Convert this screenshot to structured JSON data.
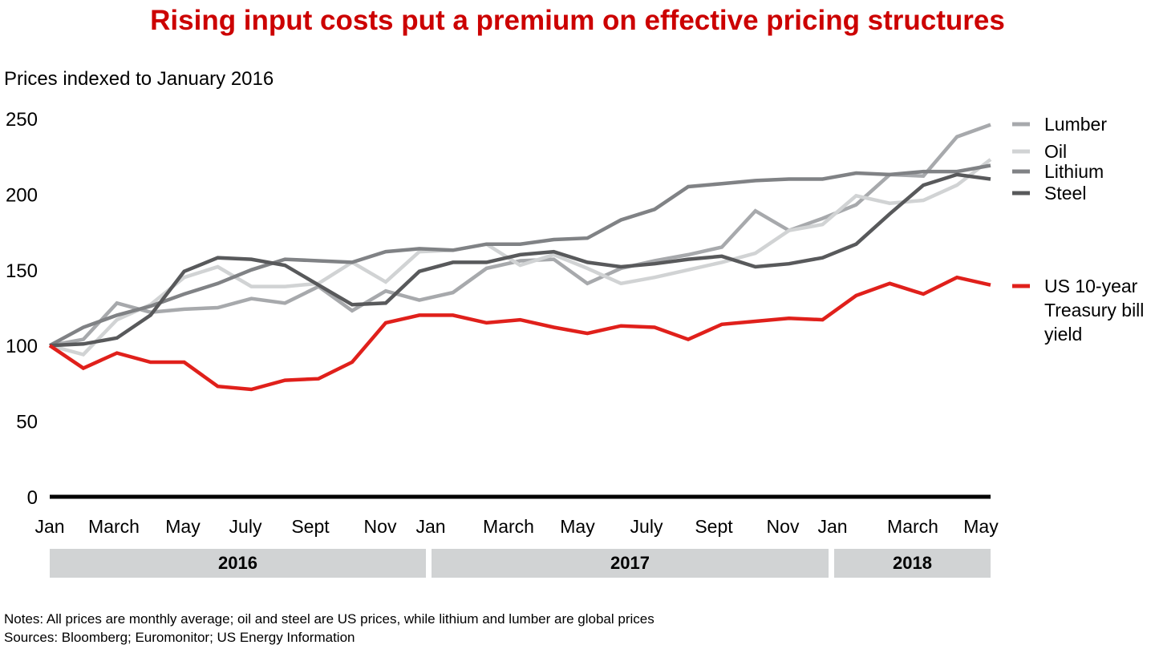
{
  "chart_data": {
    "type": "line",
    "title": "Rising input costs put a premium on effective pricing structures",
    "ylabel": "Prices indexed to January 2016",
    "ylim": [
      0,
      250
    ],
    "yticks": [
      0,
      50,
      100,
      150,
      200,
      250
    ],
    "x_start": "2016-01",
    "x_end": "2018-05",
    "x_tick_labels": [
      "Jan",
      "March",
      "May",
      "July",
      "Sept",
      "Nov",
      "Jan",
      "March",
      "May",
      "July",
      "Sept",
      "Nov",
      "Jan",
      "March",
      "May"
    ],
    "years": [
      "2016",
      "2017",
      "2018"
    ],
    "grid": false,
    "legend_placement": "right",
    "series": [
      {
        "name": "Lumber",
        "color": "#a7a9ac",
        "values": [
          100,
          104,
          128,
          122,
          124,
          125,
          131,
          128,
          139,
          123,
          136,
          130,
          135,
          151,
          156,
          157,
          141,
          151,
          156,
          160,
          165,
          189,
          176,
          184,
          193,
          213,
          212,
          238,
          246
        ]
      },
      {
        "name": "Oil",
        "color": "#d1d3d4",
        "values": [
          100,
          94,
          117,
          127,
          145,
          152,
          139,
          139,
          141,
          155,
          142,
          162,
          163,
          167,
          153,
          160,
          151,
          141,
          145,
          150,
          155,
          161,
          176,
          180,
          199,
          194,
          196,
          206,
          223
        ]
      },
      {
        "name": "Lithium",
        "color": "#808285",
        "values": [
          100,
          112,
          120,
          126,
          134,
          141,
          150,
          157,
          156,
          155,
          162,
          164,
          163,
          167,
          167,
          170,
          171,
          183,
          190,
          205,
          207,
          209,
          210,
          210,
          214,
          213,
          215,
          215,
          219
        ]
      },
      {
        "name": "Steel",
        "color": "#58595b",
        "values": [
          100,
          101,
          105,
          120,
          149,
          158,
          157,
          153,
          140,
          127,
          128,
          149,
          155,
          155,
          160,
          162,
          155,
          152,
          154,
          157,
          159,
          152,
          154,
          158,
          167,
          187,
          206,
          213,
          210
        ]
      },
      {
        "name": "US 10-year Treasury bill yield",
        "legend_lines": [
          "US 10-year",
          "Treasury bill",
          "yield"
        ],
        "color": "#e0201b",
        "values": [
          100,
          85,
          95,
          89,
          89,
          73,
          71,
          77,
          78,
          89,
          115,
          120,
          120,
          115,
          117,
          112,
          108,
          113,
          112,
          104,
          114,
          116,
          118,
          117,
          133,
          141,
          134,
          145,
          140
        ]
      }
    ],
    "notes": "Notes: All prices are monthly average; oil and steel are US prices, while lithium and lumber are global prices",
    "sources": "Sources: Bloomberg; Euromonitor; US Energy Information"
  },
  "colors": {
    "title": "#cc0000",
    "year_band": "#d1d3d4",
    "axis": "#000000"
  }
}
